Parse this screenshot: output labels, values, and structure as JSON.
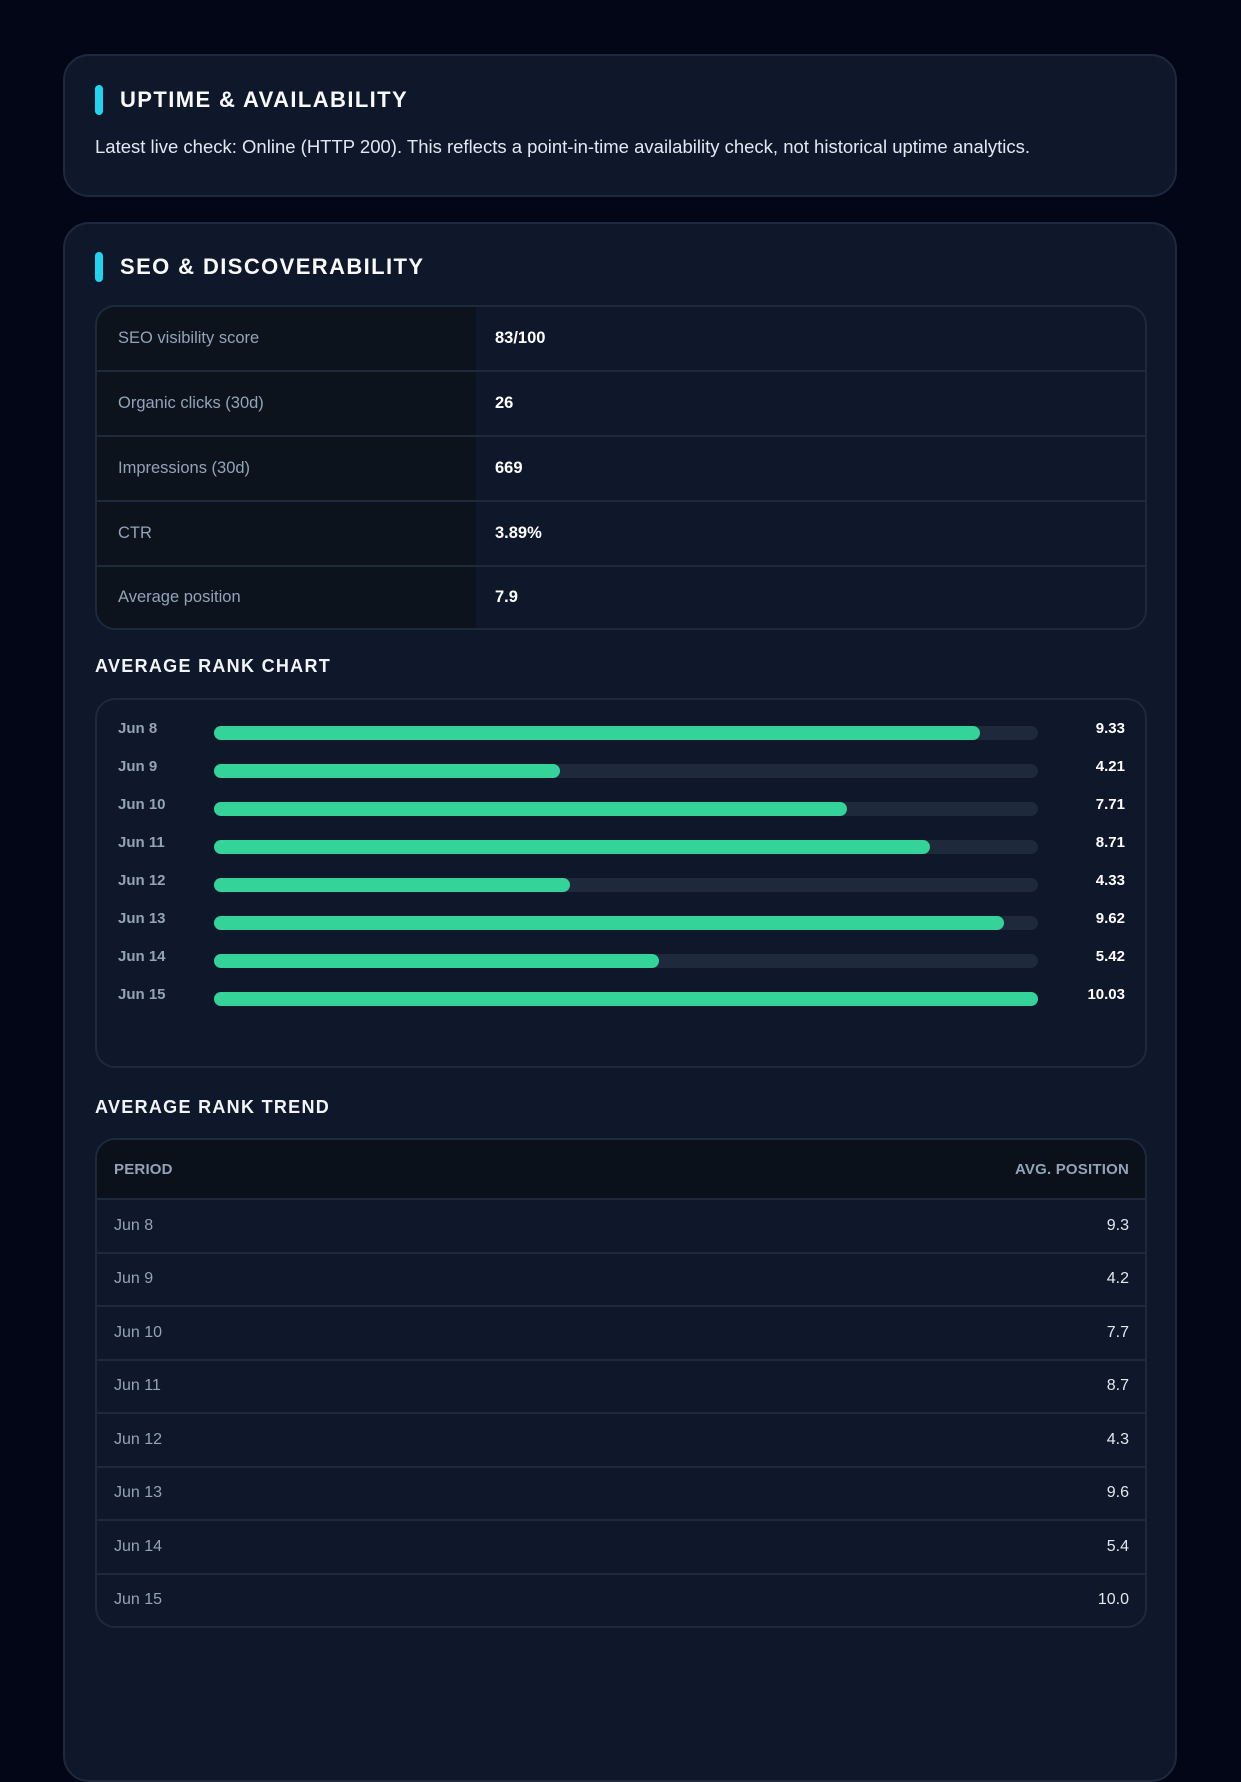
{
  "uptime": {
    "title": "UPTIME & AVAILABILITY",
    "text": "Latest live check: Online (HTTP 200). This reflects a point-in-time availability check, not historical uptime analytics."
  },
  "seo": {
    "title": "SEO & DISCOVERABILITY",
    "metrics": [
      {
        "label": "SEO visibility score",
        "value": "83/100"
      },
      {
        "label": "Organic clicks (30d)",
        "value": "26"
      },
      {
        "label": "Impressions (30d)",
        "value": "669"
      },
      {
        "label": "CTR",
        "value": "3.89%"
      },
      {
        "label": "Average position",
        "value": "7.9"
      }
    ],
    "chart_heading": "AVERAGE RANK CHART",
    "trend_heading": "AVERAGE RANK TREND",
    "trend_table": {
      "headers": [
        "PERIOD",
        "AVG. POSITION"
      ],
      "rows": [
        [
          "Jun 8",
          "9.3"
        ],
        [
          "Jun 9",
          "4.2"
        ],
        [
          "Jun 10",
          "7.7"
        ],
        [
          "Jun 11",
          "8.7"
        ],
        [
          "Jun 12",
          "4.3"
        ],
        [
          "Jun 13",
          "9.6"
        ],
        [
          "Jun 14",
          "5.4"
        ],
        [
          "Jun 15",
          "10.0"
        ]
      ]
    }
  },
  "colors": {
    "accent": "#22d3ee",
    "bar_fill": "#34d399",
    "bar_track": "#1e293b",
    "card_bg": "#0f172a",
    "page_bg": "#020617"
  },
  "chart_data": {
    "type": "bar",
    "orientation": "horizontal",
    "categories": [
      "Jun 8",
      "Jun 9",
      "Jun 10",
      "Jun 11",
      "Jun 12",
      "Jun 13",
      "Jun 14",
      "Jun 15"
    ],
    "values": [
      9.33,
      4.21,
      7.71,
      8.71,
      4.33,
      9.62,
      5.42,
      10.03
    ],
    "value_labels": [
      "9.33",
      "4.21",
      "7.71",
      "8.71",
      "4.33",
      "9.62",
      "5.42",
      "10.03"
    ],
    "xlim": [
      0,
      10.03
    ],
    "grid": false,
    "legend": "none"
  }
}
